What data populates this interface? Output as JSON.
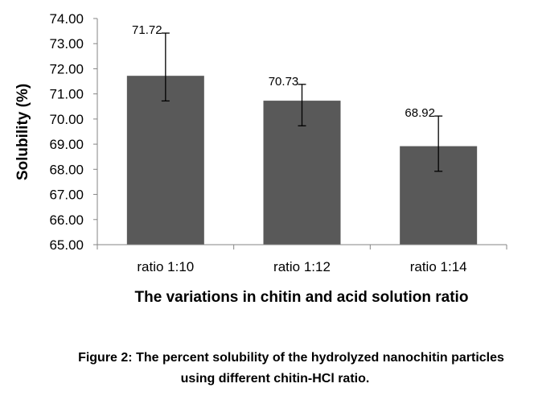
{
  "chart_data": {
    "type": "bar",
    "categories": [
      "ratio 1:10",
      "ratio 1:12",
      "ratio 1:14"
    ],
    "values": [
      71.72,
      70.73,
      68.92
    ],
    "error_plus": [
      1.7,
      0.65,
      1.2
    ],
    "error_minus": [
      1.0,
      1.0,
      1.0
    ],
    "data_labels": [
      "71.72",
      "70.73",
      "68.92"
    ],
    "ylim": [
      65,
      74
    ],
    "yticks": [
      "65.00",
      "66.00",
      "67.00",
      "68.00",
      "69.00",
      "70.00",
      "71.00",
      "72.00",
      "73.00",
      "74.00"
    ],
    "ylabel": "Solubility (%)",
    "xlabel": "The variations in chitin and acid solution ratio",
    "bar_color": "#595959",
    "grid": false,
    "legend": false
  },
  "caption": {
    "line1": "Figure 2: The percent solubility of the hydrolyzed nanochitin particles",
    "line2": "using different chitin-HCl ratio."
  }
}
